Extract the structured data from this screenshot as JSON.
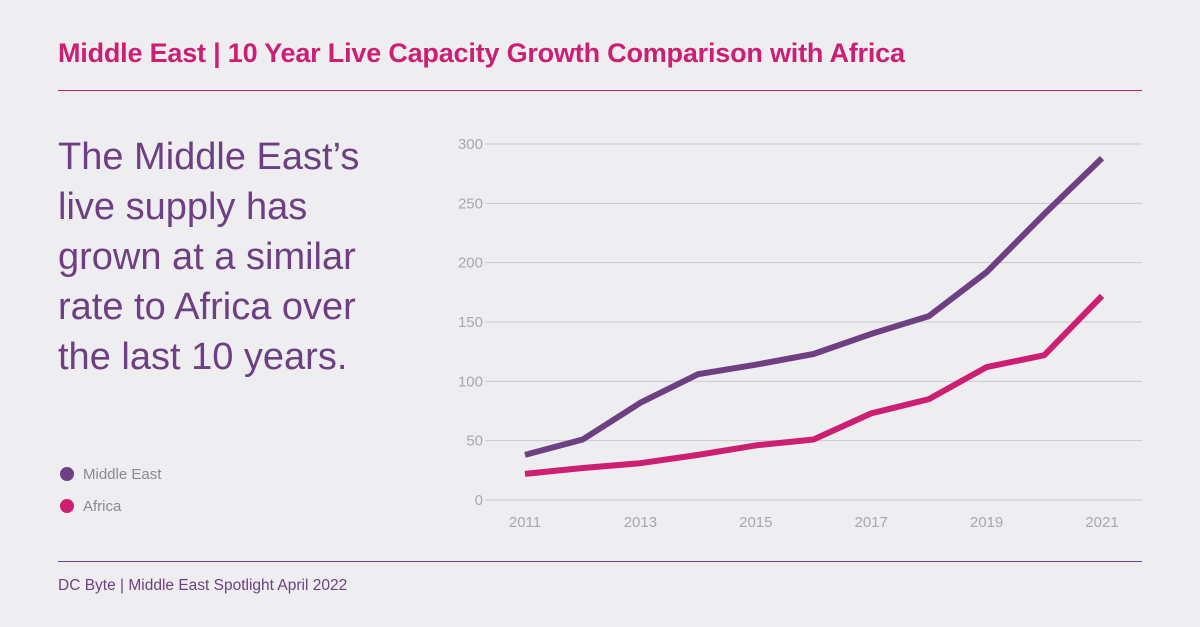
{
  "title": "Middle East | 10 Year Live Capacity Growth Comparison with Africa",
  "headline": "The Middle East’s live supply has grown at a similar rate to Africa over the last 10 years.",
  "footer": "DC Byte | Middle East Spotlight April 2022",
  "colors": {
    "accent": "#cc1f73",
    "middle_east": "#6e3f82",
    "africa": "#cc1f73",
    "grid": "#c9c9cd",
    "text_muted": "#a9a9ad",
    "background": "#eeeef0"
  },
  "chart_data": {
    "type": "line",
    "x": [
      2011,
      2012,
      2013,
      2014,
      2015,
      2016,
      2017,
      2018,
      2019,
      2020,
      2021
    ],
    "x_tick_labels": [
      "2011",
      "2013",
      "2015",
      "2017",
      "2019",
      "2021"
    ],
    "y_ticks": [
      0,
      50,
      100,
      150,
      200,
      250,
      300
    ],
    "ylim": [
      0,
      300
    ],
    "grid": true,
    "legend_position": "left-bottom",
    "series": [
      {
        "name": "Middle East",
        "color": "#6e3f82",
        "values": [
          38,
          51,
          82,
          106,
          114,
          123,
          140,
          155,
          192,
          241,
          288
        ]
      },
      {
        "name": "Africa",
        "color": "#cc1f73",
        "values": [
          22,
          27,
          31,
          38,
          46,
          51,
          73,
          85,
          112,
          122,
          172
        ]
      }
    ]
  }
}
